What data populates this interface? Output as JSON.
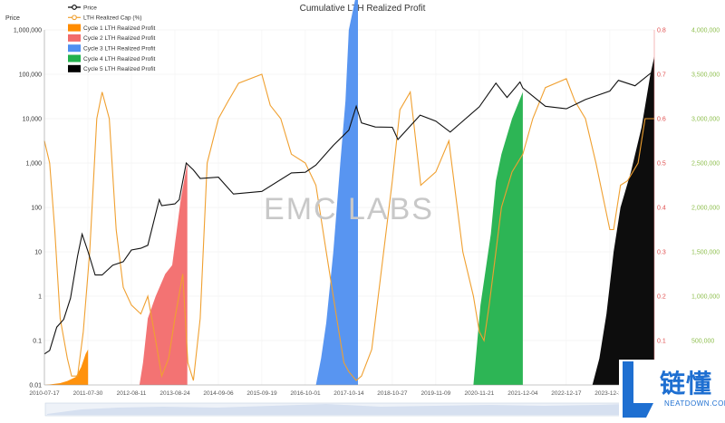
{
  "chart_data": {
    "type": "area",
    "title": "Cumulative LTH Realized Profit",
    "left_axis": {
      "label": "Price",
      "scale": "log",
      "range": [
        0.01,
        1000000
      ],
      "ticks": [
        "0.01",
        "0.1",
        "1",
        "10",
        "100",
        "1,000",
        "10,000",
        "100,000",
        "1,000,000"
      ]
    },
    "red_axis": {
      "range": [
        0,
        0.8
      ],
      "ticks": [
        "0.1",
        "0.2",
        "0.3",
        "0.4",
        "0.5",
        "0.6",
        "0.7",
        "0.8"
      ]
    },
    "green_axis": {
      "range": [
        0,
        4000000
      ],
      "ticks": [
        "500,000",
        "1,000,000",
        "1,500,000",
        "2,000,000",
        "2,500,000",
        "3,000,000",
        "3,500,000",
        "4,000,000"
      ]
    },
    "x_ticks": [
      "2010-07-17",
      "2011-07-30",
      "2012-08-11",
      "2013-08-24",
      "2014-09-06",
      "2015-09-19",
      "2016-10-01",
      "2017-10-14",
      "2018-10-27",
      "2019-11-09",
      "2020-11-21",
      "2021-12-04",
      "2022-12-17",
      "2023-12-30"
    ],
    "legend": [
      {
        "name": "Price",
        "color": "#000000",
        "style": "line-marker"
      },
      {
        "name": "LTH Realized Cap (%)",
        "color": "#f0a030",
        "style": "line-marker"
      },
      {
        "name": "Cycle 1 LTH Realized Profit",
        "color": "#ff8c00",
        "style": "box"
      },
      {
        "name": "Cycle 2 LTH Realized Profit",
        "color": "#f26b6b",
        "style": "box"
      },
      {
        "name": "Cycle 3 LTH Realized Profit",
        "color": "#4f8ff0",
        "style": "box"
      },
      {
        "name": "Cycle 4 LTH Realized Profit",
        "color": "#22b14c",
        "style": "box"
      },
      {
        "name": "Cycle 5 LTH Realized Profit",
        "color": "#000000",
        "style": "box"
      }
    ],
    "price_series": [
      [
        "2010-07-17",
        0.05
      ],
      [
        "2010-09-01",
        0.06
      ],
      [
        "2010-11-01",
        0.2
      ],
      [
        "2011-01-01",
        0.3
      ],
      [
        "2011-03-01",
        0.9
      ],
      [
        "2011-05-01",
        8
      ],
      [
        "2011-06-10",
        25
      ],
      [
        "2011-08-01",
        10
      ],
      [
        "2011-10-01",
        3
      ],
      [
        "2011-12-01",
        3
      ],
      [
        "2012-03-01",
        5
      ],
      [
        "2012-06-01",
        6
      ],
      [
        "2012-08-11",
        11
      ],
      [
        "2012-11-01",
        12
      ],
      [
        "2013-01-01",
        14
      ],
      [
        "2013-04-10",
        150
      ],
      [
        "2013-05-01",
        110
      ],
      [
        "2013-08-24",
        120
      ],
      [
        "2013-10-01",
        150
      ],
      [
        "2013-12-01",
        1000
      ],
      [
        "2014-02-01",
        700
      ],
      [
        "2014-04-01",
        450
      ],
      [
        "2014-09-06",
        480
      ],
      [
        "2015-01-15",
        200
      ],
      [
        "2015-09-19",
        230
      ],
      [
        "2016-06-01",
        600
      ],
      [
        "2016-10-01",
        620
      ],
      [
        "2017-01-01",
        900
      ],
      [
        "2017-06-01",
        2500
      ],
      [
        "2017-10-14",
        5500
      ],
      [
        "2017-12-17",
        19000
      ],
      [
        "2018-02-01",
        8000
      ],
      [
        "2018-06-01",
        6500
      ],
      [
        "2018-10-27",
        6400
      ],
      [
        "2018-12-15",
        3400
      ],
      [
        "2019-06-26",
        12000
      ],
      [
        "2019-11-09",
        8800
      ],
      [
        "2020-03-13",
        5000
      ],
      [
        "2020-11-21",
        18500
      ],
      [
        "2021-04-14",
        63000
      ],
      [
        "2021-07-20",
        30000
      ],
      [
        "2021-11-10",
        67000
      ],
      [
        "2021-12-04",
        49000
      ],
      [
        "2022-06-18",
        19000
      ],
      [
        "2022-12-17",
        16700
      ],
      [
        "2023-06-01",
        27000
      ],
      [
        "2023-12-30",
        42000
      ],
      [
        "2024-03-14",
        73000
      ],
      [
        "2024-08-05",
        55000
      ],
      [
        "2024-12-17",
        105000
      ],
      [
        "2025-01-20",
        108000
      ]
    ],
    "lth_cap_series": [
      [
        "2010-07-17",
        0.55
      ],
      [
        "2010-09-01",
        0.5
      ],
      [
        "2010-10-15",
        0.35
      ],
      [
        "2010-12-01",
        0.15
      ],
      [
        "2011-02-01",
        0.06
      ],
      [
        "2011-03-10",
        0.02
      ],
      [
        "2011-05-01",
        0.02
      ],
      [
        "2011-06-20",
        0.12
      ],
      [
        "2011-08-15",
        0.3
      ],
      [
        "2011-10-15",
        0.6
      ],
      [
        "2011-12-01",
        0.66
      ],
      [
        "2012-02-01",
        0.6
      ],
      [
        "2012-04-01",
        0.35
      ],
      [
        "2012-06-01",
        0.22
      ],
      [
        "2012-08-11",
        0.18
      ],
      [
        "2012-11-01",
        0.16
      ],
      [
        "2013-01-01",
        0.2
      ],
      [
        "2013-03-10",
        0.1
      ],
      [
        "2013-05-01",
        0.02
      ],
      [
        "2013-07-01",
        0.06
      ],
      [
        "2013-08-24",
        0.15
      ],
      [
        "2013-11-01",
        0.25
      ],
      [
        "2013-12-15",
        0.05
      ],
      [
        "2014-02-01",
        0.01
      ],
      [
        "2014-04-01",
        0.15
      ],
      [
        "2014-06-01",
        0.5
      ],
      [
        "2014-09-06",
        0.6
      ],
      [
        "2014-12-01",
        0.64
      ],
      [
        "2015-03-01",
        0.68
      ],
      [
        "2015-09-19",
        0.7
      ],
      [
        "2015-12-01",
        0.63
      ],
      [
        "2016-03-01",
        0.6
      ],
      [
        "2016-06-01",
        0.52
      ],
      [
        "2016-10-01",
        0.5
      ],
      [
        "2017-01-01",
        0.45
      ],
      [
        "2017-04-01",
        0.3
      ],
      [
        "2017-07-01",
        0.15
      ],
      [
        "2017-09-01",
        0.05
      ],
      [
        "2017-10-14",
        0.03
      ],
      [
        "2017-12-17",
        0.01
      ],
      [
        "2018-02-01",
        0.02
      ],
      [
        "2018-05-01",
        0.08
      ],
      [
        "2018-10-27",
        0.46
      ],
      [
        "2019-01-01",
        0.62
      ],
      [
        "2019-04-01",
        0.66
      ],
      [
        "2019-07-01",
        0.45
      ],
      [
        "2019-11-09",
        0.48
      ],
      [
        "2020-03-01",
        0.55
      ],
      [
        "2020-07-01",
        0.3
      ],
      [
        "2020-10-01",
        0.2
      ],
      [
        "2020-11-21",
        0.12
      ],
      [
        "2021-01-01",
        0.1
      ],
      [
        "2021-02-15",
        0.18
      ],
      [
        "2021-04-14",
        0.3
      ],
      [
        "2021-06-01",
        0.4
      ],
      [
        "2021-09-01",
        0.48
      ],
      [
        "2021-12-04",
        0.52
      ],
      [
        "2022-03-01",
        0.6
      ],
      [
        "2022-06-18",
        0.67
      ],
      [
        "2022-12-17",
        0.69
      ],
      [
        "2023-03-01",
        0.64
      ],
      [
        "2023-06-01",
        0.6
      ],
      [
        "2023-09-01",
        0.5
      ],
      [
        "2023-12-30",
        0.35
      ],
      [
        "2024-02-01",
        0.35
      ],
      [
        "2024-04-01",
        0.45
      ],
      [
        "2024-06-01",
        0.46
      ],
      [
        "2024-09-01",
        0.5
      ],
      [
        "2024-11-01",
        0.6
      ],
      [
        "2025-01-20",
        0.6
      ]
    ],
    "cycle_profits": [
      {
        "cycle": 1,
        "color": "#ff8c00",
        "points": [
          [
            "2010-07-17",
            0
          ],
          [
            "2010-09-01",
            5000
          ],
          [
            "2010-12-01",
            20000
          ],
          [
            "2011-02-01",
            45000
          ],
          [
            "2011-04-15",
            90000
          ],
          [
            "2011-06-01",
            200000
          ],
          [
            "2011-07-10",
            350000
          ],
          [
            "2011-08-01",
            400000
          ]
        ]
      },
      {
        "cycle": 2,
        "color": "#f26b6b",
        "points": [
          [
            "2012-10-20",
            0
          ],
          [
            "2012-11-20",
            250000
          ],
          [
            "2013-01-01",
            750000
          ],
          [
            "2013-03-10",
            1000000
          ],
          [
            "2013-06-01",
            1250000
          ],
          [
            "2013-08-01",
            1350000
          ],
          [
            "2013-10-15",
            2100000
          ],
          [
            "2013-12-10",
            2500000
          ]
        ]
      },
      {
        "cycle": 3,
        "color": "#4f8ff0",
        "points": [
          [
            "2017-01-01",
            0
          ],
          [
            "2017-02-15",
            300000
          ],
          [
            "2017-04-01",
            700000
          ],
          [
            "2017-06-01",
            1500000
          ],
          [
            "2017-08-01",
            2500000
          ],
          [
            "2017-09-15",
            3200000
          ],
          [
            "2017-10-14",
            4000000
          ],
          [
            "2017-12-17",
            4400000
          ],
          [
            "2018-01-01",
            4400000
          ]
        ]
      },
      {
        "cycle": 4,
        "color": "#22b14c",
        "points": [
          [
            "2020-10-01",
            0
          ],
          [
            "2020-12-01",
            900000
          ],
          [
            "2021-01-15",
            1300000
          ],
          [
            "2021-03-01",
            1700000
          ],
          [
            "2021-04-14",
            2300000
          ],
          [
            "2021-06-01",
            2600000
          ],
          [
            "2021-09-01",
            3000000
          ],
          [
            "2021-12-04",
            3300000
          ]
        ]
      },
      {
        "cycle": 5,
        "color": "#000000",
        "points": [
          [
            "2023-08-01",
            0
          ],
          [
            "2023-10-01",
            300000
          ],
          [
            "2023-12-01",
            800000
          ],
          [
            "2024-02-01",
            1500000
          ],
          [
            "2024-04-01",
            2000000
          ],
          [
            "2024-07-01",
            2400000
          ],
          [
            "2024-10-01",
            2900000
          ],
          [
            "2024-12-17",
            3500000
          ],
          [
            "2025-01-20",
            3700000
          ]
        ]
      }
    ],
    "watermark": "EMC LABS",
    "grid": true
  },
  "site_logo": {
    "cn": "链懂",
    "en": "NEATDOWN.COM"
  }
}
